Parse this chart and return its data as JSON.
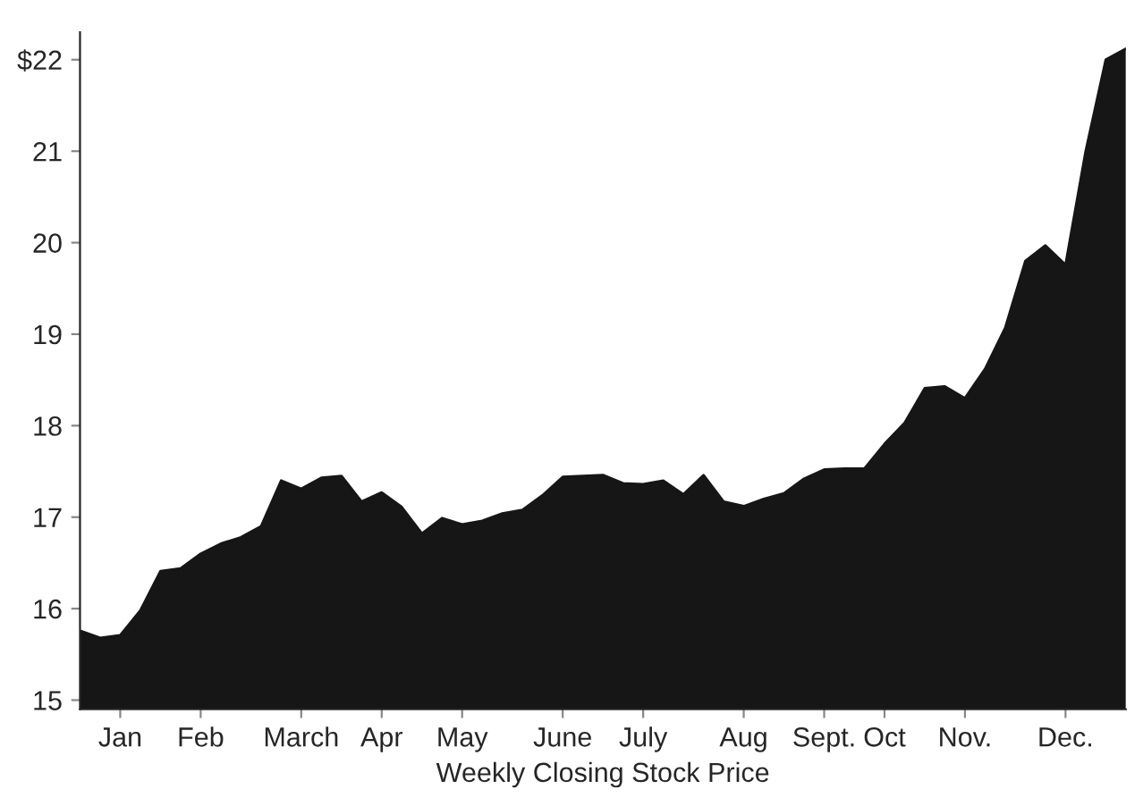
{
  "chart_data": {
    "type": "area",
    "xlabel": "Weekly Closing Stock Price",
    "categories": [
      null,
      null,
      "Jan",
      null,
      null,
      null,
      "Feb",
      null,
      null,
      null,
      null,
      "March",
      null,
      null,
      null,
      "Apr",
      null,
      null,
      null,
      "May",
      null,
      null,
      null,
      null,
      "June",
      null,
      null,
      null,
      "July",
      null,
      null,
      null,
      null,
      "Aug",
      null,
      null,
      null,
      "Sept.",
      null,
      null,
      "Oct",
      null,
      null,
      null,
      "Nov.",
      null,
      null,
      null,
      null,
      "Dec.",
      null,
      null,
      null
    ],
    "ylim": [
      14.9,
      22.3
    ],
    "yticks": [
      15,
      16,
      17,
      18,
      19,
      20,
      21,
      {
        "value": 22,
        "label": "$22"
      }
    ],
    "grid": false,
    "legend": false,
    "series": [
      {
        "color": "#161616",
        "values": [
          15.76,
          15.68,
          15.71,
          15.98,
          16.41,
          16.44,
          16.6,
          16.71,
          16.78,
          16.9,
          17.4,
          17.31,
          17.43,
          17.45,
          17.17,
          17.27,
          17.11,
          16.82,
          16.99,
          16.92,
          16.96,
          17.04,
          17.08,
          17.24,
          17.44,
          17.45,
          17.46,
          17.37,
          17.36,
          17.4,
          17.25,
          17.46,
          17.17,
          17.12,
          17.2,
          17.26,
          17.42,
          17.52,
          17.53,
          17.53,
          17.8,
          18.03,
          18.41,
          18.43,
          18.3,
          18.62,
          19.07,
          19.8,
          19.97,
          19.76,
          21.0,
          22.0,
          22.12
        ]
      }
    ]
  }
}
